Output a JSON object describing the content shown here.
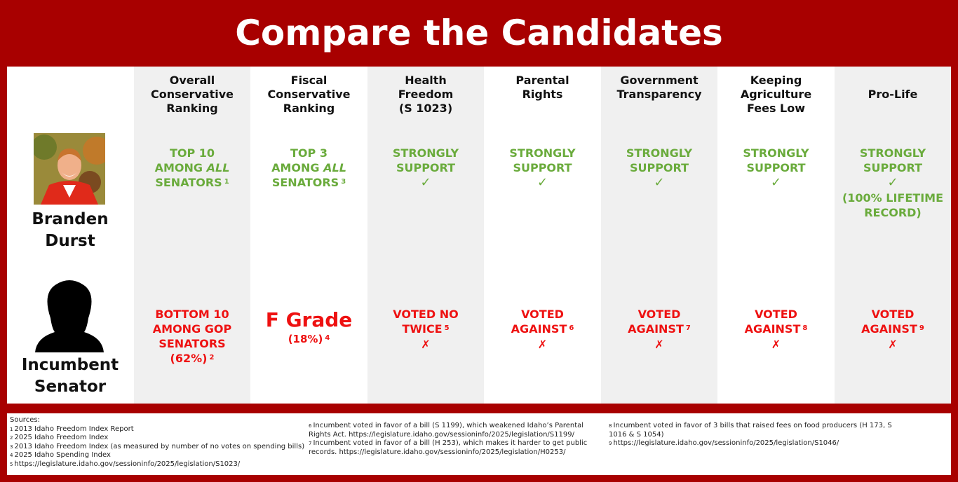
{
  "title": "Compare the Candidates",
  "colors": {
    "frame": "#a80000",
    "support_green": "#6aab3c",
    "against_red": "#ee1111"
  },
  "candidates": [
    {
      "name_line1": "Branden",
      "name_line2": "Durst",
      "photo": "candidate-photo"
    },
    {
      "name_line1": "Incumbent",
      "name_line2": "Senator",
      "photo": "silhouette-icon"
    }
  ],
  "columns": [
    {
      "header": [
        "Overall",
        "Conservative",
        "Ranking"
      ],
      "durst": {
        "lines": [
          "TOP 10",
          "AMONG ALL",
          "SENATORS"
        ],
        "sup": "1",
        "italic_word": "ALL"
      },
      "incumbent": {
        "lines": [
          "BOTTOM 10",
          "AMONG GOP",
          "SENATORS",
          "(62%)"
        ],
        "sup": "2"
      }
    },
    {
      "header": [
        "Fiscal",
        "Conservative",
        "Ranking"
      ],
      "durst": {
        "lines": [
          "TOP 3",
          "AMONG ALL",
          "SENATORS"
        ],
        "sup": "3",
        "italic_word": "ALL"
      },
      "incumbent": {
        "grade": "F Grade",
        "sub": "(18%)",
        "sup": "4"
      }
    },
    {
      "header": [
        "Health",
        "Freedom",
        "(S 1023)"
      ],
      "durst": {
        "lines": [
          "STRONGLY",
          "SUPPORT"
        ],
        "mark": "✓"
      },
      "incumbent": {
        "lines": [
          "VOTED NO",
          "TWICE"
        ],
        "sup": "5",
        "mark": "✗"
      }
    },
    {
      "header": [
        "Parental",
        "Rights"
      ],
      "durst": {
        "lines": [
          "STRONGLY",
          "SUPPORT"
        ],
        "mark": "✓"
      },
      "incumbent": {
        "lines": [
          "VOTED",
          "AGAINST"
        ],
        "sup": "6",
        "mark": "✗"
      }
    },
    {
      "header": [
        "Government",
        "Transparency"
      ],
      "durst": {
        "lines": [
          "STRONGLY",
          "SUPPORT"
        ],
        "mark": "✓"
      },
      "incumbent": {
        "lines": [
          "VOTED",
          "AGAINST"
        ],
        "sup": "7",
        "mark": "✗"
      }
    },
    {
      "header": [
        "Keeping",
        "Agriculture",
        "Fees Low"
      ],
      "durst": {
        "lines": [
          "STRONGLY",
          "SUPPORT"
        ],
        "mark": "✓"
      },
      "incumbent": {
        "lines": [
          "VOTED",
          "AGAINST"
        ],
        "sup": "8",
        "mark": "✗"
      }
    },
    {
      "header": [
        "Pro-Life"
      ],
      "durst": {
        "lines": [
          "STRONGLY",
          "SUPPORT"
        ],
        "mark": "✓",
        "extra": [
          "(100% LIFETIME",
          "RECORD)"
        ]
      },
      "incumbent": {
        "lines": [
          "VOTED",
          "AGAINST"
        ],
        "sup": "9",
        "mark": "✗"
      }
    }
  ],
  "sources": {
    "heading": "Sources:",
    "col1": [
      {
        "sup": "1",
        "text": "2013 Idaho Freedom Index Report"
      },
      {
        "sup": "2",
        "text": "2025 Idaho Freedom Index"
      },
      {
        "sup": "3",
        "text": "2013 Idaho Freedom Index (as measured by number of no votes on spending bills)"
      },
      {
        "sup": "4",
        "text": "2025 Idaho Spending Index"
      },
      {
        "sup": "5",
        "text": "https://legislature.idaho.gov/sessioninfo/2025/legislation/S1023/"
      }
    ],
    "col2": [
      {
        "sup": "6",
        "text": "Incumbent voted in favor of a bill (S 1199), which weakened Idaho’s Parental Rights Act. https://legislature.idaho.gov/sessioninfo/2025/legislation/S1199/"
      },
      {
        "sup": "7",
        "text": "Incumbent voted in favor of a bill (H 253), which makes it harder to get public records. https://legislature.idaho.gov/sessioninfo/2025/legislation/H0253/"
      }
    ],
    "col3": [
      {
        "sup": "8",
        "text": "Incumbent voted in favor of 3 bills that raised fees on food producers (H 173, S 1016 & S 1054)"
      },
      {
        "sup": "9",
        "text": "https://legislature.idaho.gov/sessioninfo/2025/legislation/S1046/"
      }
    ]
  }
}
